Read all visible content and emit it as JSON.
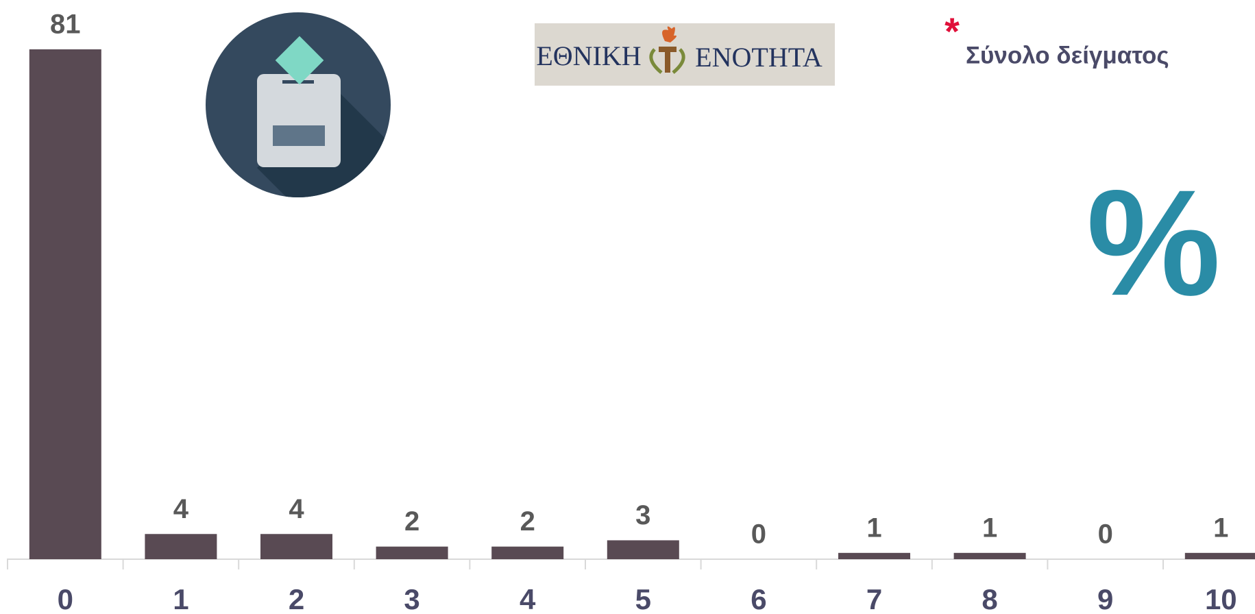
{
  "chart_data": {
    "type": "bar",
    "categories": [
      "0",
      "1",
      "2",
      "3",
      "4",
      "5",
      "6",
      "7",
      "8",
      "9",
      "10"
    ],
    "values": [
      81,
      4,
      4,
      2,
      2,
      3,
      0,
      1,
      1,
      0,
      1
    ],
    "color": "#594a53",
    "label_color": "#595959",
    "category_color": "#4a4a68",
    "legend_marker": "*",
    "legend_text": "Σύνολο δείγματος",
    "unit_symbol": "%",
    "logo_left": "ΕΘΝΙΚΗ",
    "logo_right": "ΕΝΟΤΗΤΑ"
  }
}
